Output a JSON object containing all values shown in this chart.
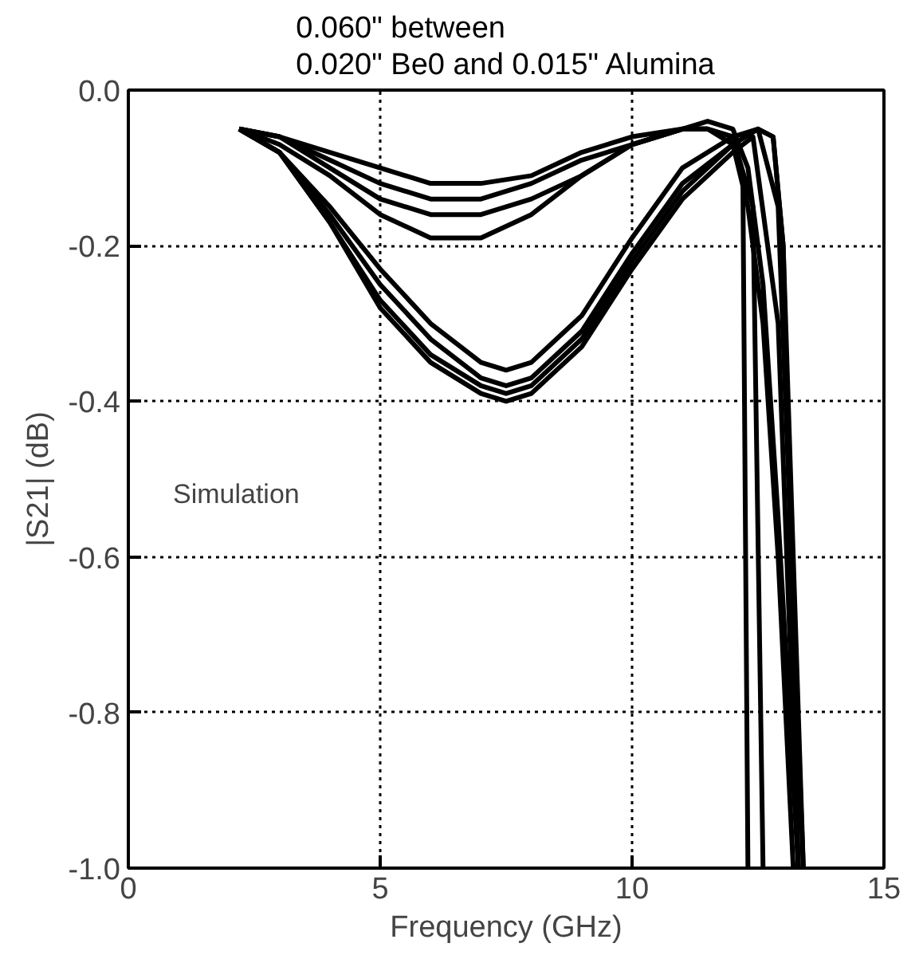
{
  "chart_data": {
    "type": "line",
    "title": "0.060\" between\n0.020\" Be0 and 0.015\" Alumina",
    "xlabel": "Frequency (GHz)",
    "ylabel": "|S21| (dB)",
    "annotations": [
      "Simulation"
    ],
    "xlim": [
      0,
      15
    ],
    "ylim": [
      -1.0,
      0.0
    ],
    "xticks": [
      0,
      5,
      10,
      15
    ],
    "yticks": [
      {
        "value": -1.0,
        "label": "-1.0"
      },
      {
        "value": -0.8,
        "label": "-0.8"
      },
      {
        "value": -0.6,
        "label": "-0.6"
      },
      {
        "value": -0.4,
        "label": "-0.4"
      },
      {
        "value": -0.2,
        "label": "-0.2"
      },
      {
        "value": 0.0,
        "label": "0.0"
      }
    ],
    "grid": true,
    "line_style": "solid",
    "series": [
      {
        "color": "#000000",
        "x": [
          2.2,
          3,
          4,
          5,
          6,
          7,
          8,
          9,
          10,
          11,
          11.5,
          12,
          12.3,
          12.6,
          12.9,
          13.2
        ],
        "values": [
          -0.05,
          -0.06,
          -0.08,
          -0.1,
          -0.12,
          -0.12,
          -0.11,
          -0.08,
          -0.06,
          -0.05,
          -0.05,
          -0.07,
          -0.15,
          -0.3,
          -0.6,
          -1.0
        ]
      },
      {
        "color": "#000000",
        "x": [
          2.2,
          3,
          4,
          5,
          6,
          7,
          8,
          9,
          10,
          11,
          11.5,
          12,
          12.3,
          12.6,
          12.9,
          13.3
        ],
        "values": [
          -0.05,
          -0.06,
          -0.09,
          -0.12,
          -0.14,
          -0.14,
          -0.12,
          -0.09,
          -0.07,
          -0.05,
          -0.04,
          -0.05,
          -0.1,
          -0.25,
          -0.55,
          -1.0
        ]
      },
      {
        "color": "#000000",
        "x": [
          2.2,
          3,
          4,
          5,
          6,
          7,
          8,
          9,
          10,
          11,
          11.5,
          12,
          12.2,
          12.3
        ],
        "values": [
          -0.05,
          -0.06,
          -0.1,
          -0.14,
          -0.16,
          -0.16,
          -0.14,
          -0.11,
          -0.07,
          -0.05,
          -0.05,
          -0.06,
          -0.12,
          -1.0
        ]
      },
      {
        "color": "#000000",
        "x": [
          2.2,
          3,
          4,
          5,
          6,
          7,
          8,
          9,
          10,
          11,
          11.5,
          12,
          12.4,
          12.6
        ],
        "values": [
          -0.05,
          -0.07,
          -0.11,
          -0.16,
          -0.19,
          -0.19,
          -0.16,
          -0.11,
          -0.07,
          -0.05,
          -0.05,
          -0.06,
          -0.15,
          -1.0
        ]
      },
      {
        "color": "#000000",
        "x": [
          2.2,
          3,
          4,
          5,
          6,
          7,
          7.5,
          8,
          9,
          10,
          11,
          12,
          12.5,
          12.8,
          13.0,
          13.3
        ],
        "values": [
          -0.05,
          -0.08,
          -0.15,
          -0.23,
          -0.3,
          -0.35,
          -0.36,
          -0.35,
          -0.29,
          -0.19,
          -0.1,
          -0.06,
          -0.05,
          -0.06,
          -0.2,
          -1.0
        ]
      },
      {
        "color": "#000000",
        "x": [
          2.2,
          3,
          4,
          5,
          6,
          7,
          7.5,
          8,
          9,
          10,
          11,
          12,
          12.5,
          12.8,
          13.0,
          13.4
        ],
        "values": [
          -0.05,
          -0.08,
          -0.16,
          -0.25,
          -0.32,
          -0.37,
          -0.38,
          -0.37,
          -0.31,
          -0.21,
          -0.12,
          -0.07,
          -0.05,
          -0.06,
          -0.2,
          -1.0
        ]
      },
      {
        "color": "#000000",
        "x": [
          2.2,
          3,
          4,
          5,
          6,
          7,
          7.5,
          8,
          9,
          10,
          11,
          12,
          12.5,
          12.9,
          13.4
        ],
        "values": [
          -0.05,
          -0.08,
          -0.17,
          -0.27,
          -0.34,
          -0.38,
          -0.39,
          -0.38,
          -0.32,
          -0.22,
          -0.13,
          -0.07,
          -0.05,
          -0.15,
          -1.0
        ]
      },
      {
        "color": "#000000",
        "x": [
          2.2,
          3,
          4,
          5,
          6,
          7,
          7.5,
          8,
          9,
          10,
          11,
          12,
          12.4,
          12.9,
          13.3
        ],
        "values": [
          -0.05,
          -0.08,
          -0.17,
          -0.28,
          -0.35,
          -0.39,
          -0.4,
          -0.39,
          -0.33,
          -0.23,
          -0.14,
          -0.08,
          -0.06,
          -0.3,
          -1.0
        ]
      }
    ]
  }
}
